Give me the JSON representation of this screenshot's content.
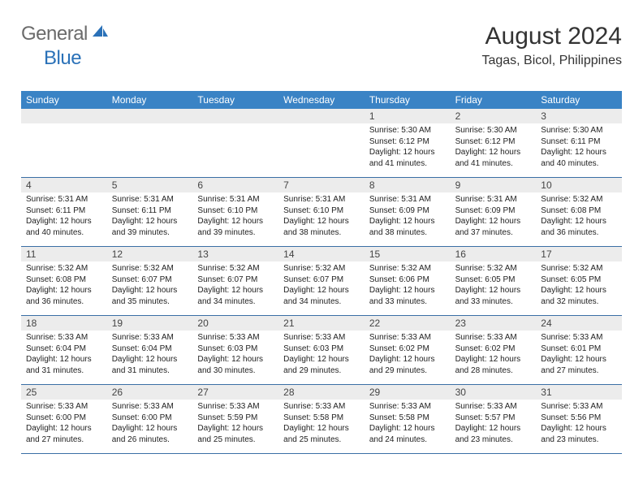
{
  "logo": {
    "text1": "General",
    "text2": "Blue"
  },
  "title": "August 2024",
  "location": "Tagas, Bicol, Philippines",
  "colors": {
    "header_bg": "#3a83c5",
    "header_text": "#ffffff",
    "date_bg": "#ececec",
    "rule": "#3a6fa5",
    "logo_gray": "#6b6b6b",
    "logo_blue": "#2a71b8"
  },
  "daynames": [
    "Sunday",
    "Monday",
    "Tuesday",
    "Wednesday",
    "Thursday",
    "Friday",
    "Saturday"
  ],
  "weeks": [
    [
      {
        "date": "",
        "sunrise": "",
        "sunset": "",
        "daylight": ""
      },
      {
        "date": "",
        "sunrise": "",
        "sunset": "",
        "daylight": ""
      },
      {
        "date": "",
        "sunrise": "",
        "sunset": "",
        "daylight": ""
      },
      {
        "date": "",
        "sunrise": "",
        "sunset": "",
        "daylight": ""
      },
      {
        "date": "1",
        "sunrise": "Sunrise: 5:30 AM",
        "sunset": "Sunset: 6:12 PM",
        "daylight": "Daylight: 12 hours and 41 minutes."
      },
      {
        "date": "2",
        "sunrise": "Sunrise: 5:30 AM",
        "sunset": "Sunset: 6:12 PM",
        "daylight": "Daylight: 12 hours and 41 minutes."
      },
      {
        "date": "3",
        "sunrise": "Sunrise: 5:30 AM",
        "sunset": "Sunset: 6:11 PM",
        "daylight": "Daylight: 12 hours and 40 minutes."
      }
    ],
    [
      {
        "date": "4",
        "sunrise": "Sunrise: 5:31 AM",
        "sunset": "Sunset: 6:11 PM",
        "daylight": "Daylight: 12 hours and 40 minutes."
      },
      {
        "date": "5",
        "sunrise": "Sunrise: 5:31 AM",
        "sunset": "Sunset: 6:11 PM",
        "daylight": "Daylight: 12 hours and 39 minutes."
      },
      {
        "date": "6",
        "sunrise": "Sunrise: 5:31 AM",
        "sunset": "Sunset: 6:10 PM",
        "daylight": "Daylight: 12 hours and 39 minutes."
      },
      {
        "date": "7",
        "sunrise": "Sunrise: 5:31 AM",
        "sunset": "Sunset: 6:10 PM",
        "daylight": "Daylight: 12 hours and 38 minutes."
      },
      {
        "date": "8",
        "sunrise": "Sunrise: 5:31 AM",
        "sunset": "Sunset: 6:09 PM",
        "daylight": "Daylight: 12 hours and 38 minutes."
      },
      {
        "date": "9",
        "sunrise": "Sunrise: 5:31 AM",
        "sunset": "Sunset: 6:09 PM",
        "daylight": "Daylight: 12 hours and 37 minutes."
      },
      {
        "date": "10",
        "sunrise": "Sunrise: 5:32 AM",
        "sunset": "Sunset: 6:08 PM",
        "daylight": "Daylight: 12 hours and 36 minutes."
      }
    ],
    [
      {
        "date": "11",
        "sunrise": "Sunrise: 5:32 AM",
        "sunset": "Sunset: 6:08 PM",
        "daylight": "Daylight: 12 hours and 36 minutes."
      },
      {
        "date": "12",
        "sunrise": "Sunrise: 5:32 AM",
        "sunset": "Sunset: 6:07 PM",
        "daylight": "Daylight: 12 hours and 35 minutes."
      },
      {
        "date": "13",
        "sunrise": "Sunrise: 5:32 AM",
        "sunset": "Sunset: 6:07 PM",
        "daylight": "Daylight: 12 hours and 34 minutes."
      },
      {
        "date": "14",
        "sunrise": "Sunrise: 5:32 AM",
        "sunset": "Sunset: 6:07 PM",
        "daylight": "Daylight: 12 hours and 34 minutes."
      },
      {
        "date": "15",
        "sunrise": "Sunrise: 5:32 AM",
        "sunset": "Sunset: 6:06 PM",
        "daylight": "Daylight: 12 hours and 33 minutes."
      },
      {
        "date": "16",
        "sunrise": "Sunrise: 5:32 AM",
        "sunset": "Sunset: 6:05 PM",
        "daylight": "Daylight: 12 hours and 33 minutes."
      },
      {
        "date": "17",
        "sunrise": "Sunrise: 5:32 AM",
        "sunset": "Sunset: 6:05 PM",
        "daylight": "Daylight: 12 hours and 32 minutes."
      }
    ],
    [
      {
        "date": "18",
        "sunrise": "Sunrise: 5:33 AM",
        "sunset": "Sunset: 6:04 PM",
        "daylight": "Daylight: 12 hours and 31 minutes."
      },
      {
        "date": "19",
        "sunrise": "Sunrise: 5:33 AM",
        "sunset": "Sunset: 6:04 PM",
        "daylight": "Daylight: 12 hours and 31 minutes."
      },
      {
        "date": "20",
        "sunrise": "Sunrise: 5:33 AM",
        "sunset": "Sunset: 6:03 PM",
        "daylight": "Daylight: 12 hours and 30 minutes."
      },
      {
        "date": "21",
        "sunrise": "Sunrise: 5:33 AM",
        "sunset": "Sunset: 6:03 PM",
        "daylight": "Daylight: 12 hours and 29 minutes."
      },
      {
        "date": "22",
        "sunrise": "Sunrise: 5:33 AM",
        "sunset": "Sunset: 6:02 PM",
        "daylight": "Daylight: 12 hours and 29 minutes."
      },
      {
        "date": "23",
        "sunrise": "Sunrise: 5:33 AM",
        "sunset": "Sunset: 6:02 PM",
        "daylight": "Daylight: 12 hours and 28 minutes."
      },
      {
        "date": "24",
        "sunrise": "Sunrise: 5:33 AM",
        "sunset": "Sunset: 6:01 PM",
        "daylight": "Daylight: 12 hours and 27 minutes."
      }
    ],
    [
      {
        "date": "25",
        "sunrise": "Sunrise: 5:33 AM",
        "sunset": "Sunset: 6:00 PM",
        "daylight": "Daylight: 12 hours and 27 minutes."
      },
      {
        "date": "26",
        "sunrise": "Sunrise: 5:33 AM",
        "sunset": "Sunset: 6:00 PM",
        "daylight": "Daylight: 12 hours and 26 minutes."
      },
      {
        "date": "27",
        "sunrise": "Sunrise: 5:33 AM",
        "sunset": "Sunset: 5:59 PM",
        "daylight": "Daylight: 12 hours and 25 minutes."
      },
      {
        "date": "28",
        "sunrise": "Sunrise: 5:33 AM",
        "sunset": "Sunset: 5:58 PM",
        "daylight": "Daylight: 12 hours and 25 minutes."
      },
      {
        "date": "29",
        "sunrise": "Sunrise: 5:33 AM",
        "sunset": "Sunset: 5:58 PM",
        "daylight": "Daylight: 12 hours and 24 minutes."
      },
      {
        "date": "30",
        "sunrise": "Sunrise: 5:33 AM",
        "sunset": "Sunset: 5:57 PM",
        "daylight": "Daylight: 12 hours and 23 minutes."
      },
      {
        "date": "31",
        "sunrise": "Sunrise: 5:33 AM",
        "sunset": "Sunset: 5:56 PM",
        "daylight": "Daylight: 12 hours and 23 minutes."
      }
    ]
  ]
}
